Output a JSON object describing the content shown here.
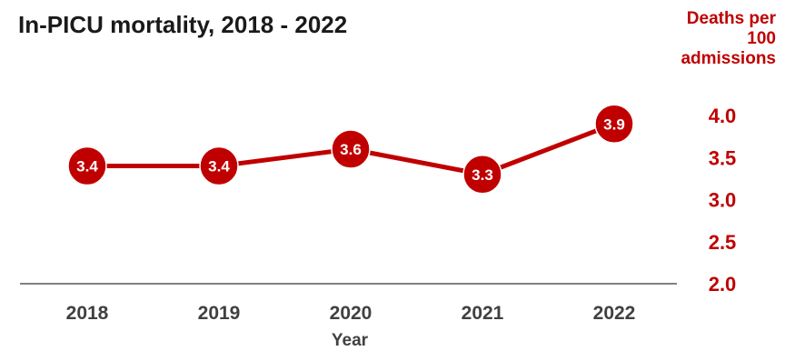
{
  "chart_data": {
    "type": "line",
    "title": "In-PICU mortality, 2018 - 2022",
    "xlabel": "Year",
    "ylabel": "Deaths per 100 admissions",
    "categories": [
      "2018",
      "2019",
      "2020",
      "2021",
      "2022"
    ],
    "series": [
      {
        "values": [
          3.4,
          3.4,
          3.6,
          3.3,
          3.9
        ],
        "labels": [
          "3.4",
          "3.4",
          "3.6",
          "3.3",
          "3.9"
        ]
      }
    ],
    "ylim": [
      2.0,
      4.0
    ],
    "yticks": [
      "2.0",
      "2.5",
      "3.0",
      "3.5",
      "4.0"
    ],
    "y_axis_position": "right",
    "grid": false,
    "colors": {
      "series": "#c00000",
      "axis_text": "#c00000",
      "category_text": "#404040",
      "baseline": "#808080"
    }
  }
}
